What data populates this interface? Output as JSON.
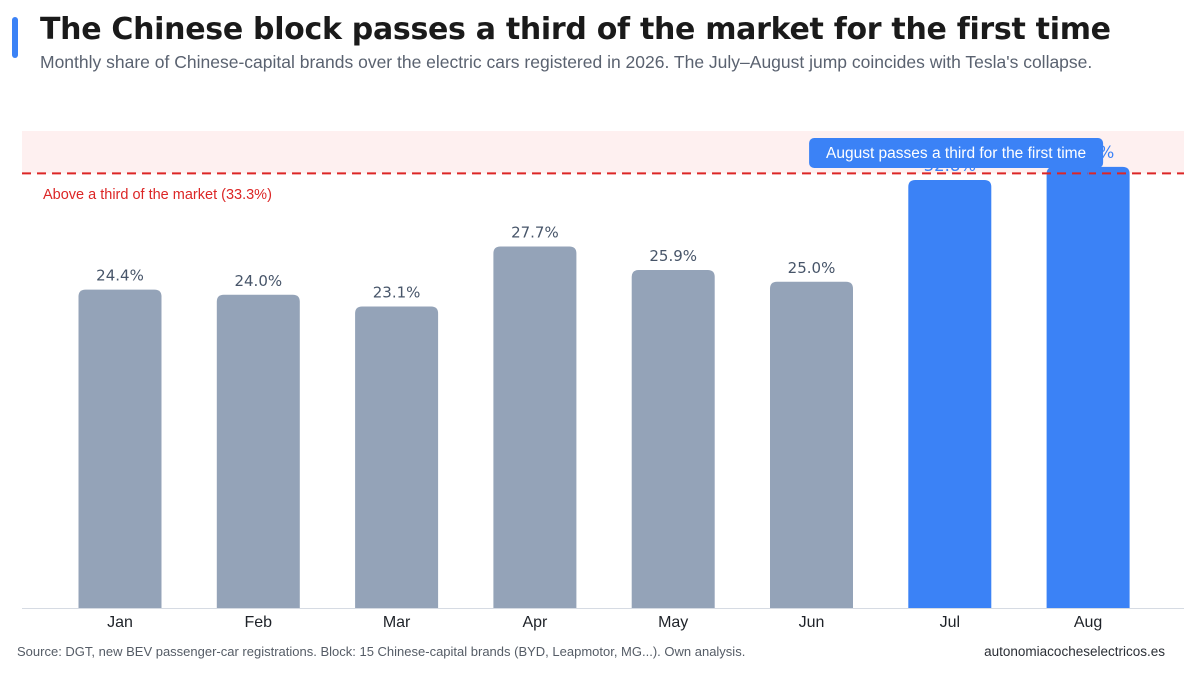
{
  "header": {
    "title": "The Chinese block passes a third of the market for the first time",
    "subtitle": "Monthly share of Chinese-capital brands over the electric cars registered in 2026. The July–August jump coincides with Tesla's collapse."
  },
  "footer": {
    "source": "Source: DGT, new BEV passenger-car registrations. Block: 15 Chinese-capital brands (BYD, Leapmotor, MG...). Own analysis.",
    "brand": "autonomiacocheselectricos.es"
  },
  "colors": {
    "accent": "#3b82f6",
    "bar_default": "#94a3b8",
    "threshold_line": "#dc2626",
    "threshold_band": "#fef0f0",
    "label_default": "#475569"
  },
  "chart_data": {
    "type": "bar",
    "categories": [
      "Jan",
      "Feb",
      "Mar",
      "Apr",
      "May",
      "Jun",
      "Jul",
      "Aug"
    ],
    "values": [
      24.4,
      24.0,
      23.1,
      27.7,
      25.9,
      25.0,
      32.8,
      33.8
    ],
    "value_labels": [
      "24.4%",
      "24.0%",
      "23.1%",
      "27.7%",
      "25.9%",
      "25.0%",
      "32.8%",
      "33.8%"
    ],
    "highlighted": [
      false,
      false,
      false,
      false,
      false,
      false,
      true,
      true
    ],
    "threshold": {
      "value": 33.3,
      "label": "Above a third of the market (33.3%)"
    },
    "callout": {
      "category": "Aug",
      "text": "August passes a third for the first time"
    },
    "ylim": [
      0,
      37
    ],
    "grid": false
  }
}
